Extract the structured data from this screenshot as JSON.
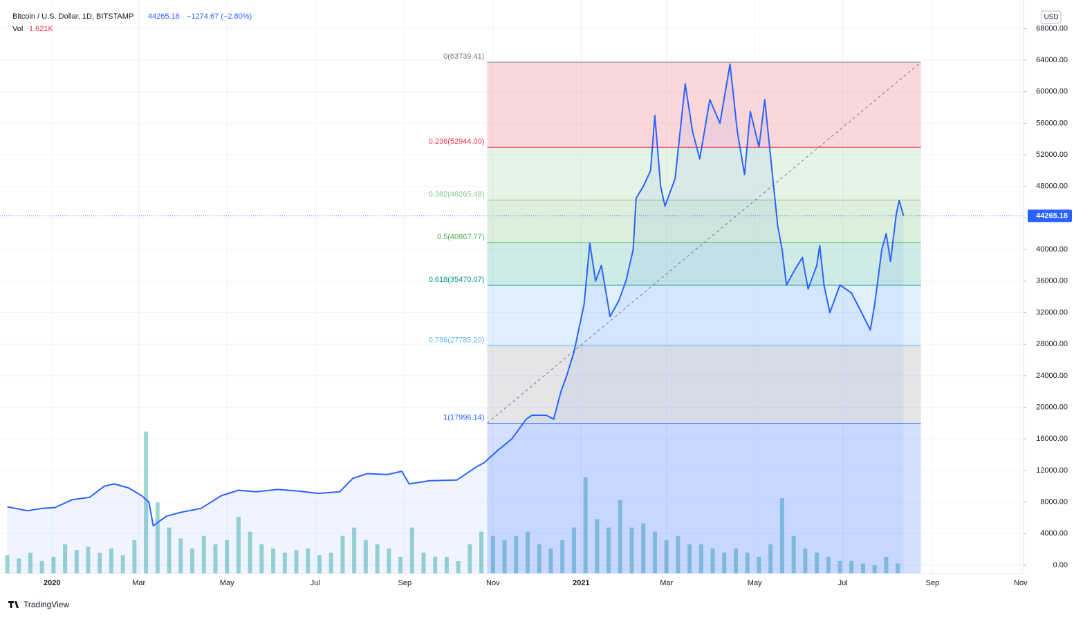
{
  "chart_data": {
    "type": "line",
    "title": "Bitcoin / U.S. Dollar, 1D, BITSTAMP",
    "last_price": 44265.18,
    "change": "−1274.67 (−2.80%)",
    "volume_title": "Vol",
    "volume_last": "1.621K",
    "currency": "USD",
    "brand": "TradingView",
    "xlim": [
      -36,
      672
    ],
    "ylim": [
      -1050,
      71620
    ],
    "xticks": [
      {
        "value": 0,
        "label": "2020"
      },
      {
        "value": 60,
        "label": "Mar"
      },
      {
        "value": 121,
        "label": "May"
      },
      {
        "value": 182,
        "label": "Jul"
      },
      {
        "value": 244,
        "label": "Sep"
      },
      {
        "value": 305,
        "label": "Nov"
      },
      {
        "value": 366,
        "label": "2021"
      },
      {
        "value": 425,
        "label": "Mar"
      },
      {
        "value": 486,
        "label": "May"
      },
      {
        "value": 547,
        "label": "Jul"
      },
      {
        "value": 609,
        "label": "Sep"
      },
      {
        "value": 670,
        "label": "Nov"
      }
    ],
    "yticks": [
      {
        "value": 0,
        "label": "0.00"
      },
      {
        "value": 4000,
        "label": "4000.00"
      },
      {
        "value": 8000,
        "label": "8000.00"
      },
      {
        "value": 12000,
        "label": "12000.00"
      },
      {
        "value": 16000,
        "label": "16000.00"
      },
      {
        "value": 20000,
        "label": "20000.00"
      },
      {
        "value": 24000,
        "label": "24000.00"
      },
      {
        "value": 28000,
        "label": "28000.00"
      },
      {
        "value": 32000,
        "label": "32000.00"
      },
      {
        "value": 36000,
        "label": "36000.00"
      },
      {
        "value": 40000,
        "label": "40000.00"
      },
      {
        "value": 44000,
        "label": "44000.00"
      },
      {
        "value": 48000,
        "label": "48000.00"
      },
      {
        "value": 52000,
        "label": "52000.00"
      },
      {
        "value": 56000,
        "label": "56000.00"
      },
      {
        "value": 60000,
        "label": "60000.00"
      },
      {
        "value": 64000,
        "label": "64000.00"
      },
      {
        "value": 68000,
        "label": "68000.00"
      }
    ],
    "grid": true,
    "series": [
      {
        "name": "Bitcoin / U.S. Dollar",
        "color": "#2962ff",
        "x": [
          -31,
          -17,
          -7,
          2,
          14,
          26,
          36,
          43,
          53,
          62,
          67,
          70,
          79,
          89,
          103,
          117,
          129,
          141,
          156,
          170,
          184,
          199,
          208,
          218,
          232,
          242,
          247,
          261,
          280,
          294,
          299,
          308,
          318,
          328,
          332,
          342,
          347,
          352,
          356,
          361,
          368,
          372,
          376,
          380,
          386,
          392,
          397,
          402,
          404,
          409,
          414,
          417,
          421,
          424,
          431,
          438,
          443,
          448,
          455,
          462,
          469,
          474,
          479,
          483,
          489,
          493,
          498,
          502,
          505,
          508,
          514,
          519,
          523,
          529,
          531,
          534,
          538,
          545,
          553,
          560,
          566,
          569,
          574,
          577,
          580,
          584,
          586,
          589
        ],
        "values": [
          7400,
          6900,
          7200,
          7300,
          8300,
          8600,
          10000,
          10300,
          9800,
          8800,
          8000,
          5000,
          6200,
          6700,
          7200,
          8800,
          9500,
          9300,
          9600,
          9400,
          9100,
          9300,
          11000,
          11600,
          11500,
          11900,
          10300,
          10700,
          10800,
          12500,
          13000,
          14500,
          16000,
          18500,
          19000,
          19000,
          18500,
          22000,
          24000,
          27000,
          33000,
          40800,
          36000,
          38000,
          31500,
          33500,
          36000,
          40000,
          46500,
          48000,
          50000,
          57000,
          48000,
          45500,
          49000,
          61000,
          55000,
          51500,
          59000,
          56000,
          63500,
          55000,
          49500,
          57500,
          53000,
          59000,
          50000,
          43000,
          40000,
          35500,
          37500,
          39000,
          35000,
          38000,
          40500,
          35500,
          32000,
          35500,
          34500,
          32000,
          29800,
          33000,
          40000,
          42000,
          38500,
          44500,
          46200,
          44265.18
        ]
      }
    ],
    "volume": {
      "color": "#26a69a",
      "ylim": [
        0,
        24
      ],
      "x": [
        -31,
        -23,
        -15,
        -7,
        1,
        9,
        17,
        25,
        33,
        41,
        49,
        57,
        65,
        73,
        81,
        89,
        97,
        105,
        113,
        121,
        129,
        137,
        145,
        153,
        161,
        169,
        177,
        185,
        193,
        201,
        209,
        217,
        225,
        233,
        241,
        249,
        257,
        265,
        273,
        281,
        289,
        297,
        305,
        313,
        321,
        329,
        337,
        345,
        353,
        361,
        369,
        377,
        385,
        393,
        401,
        409,
        417,
        425,
        433,
        441,
        449,
        457,
        465,
        473,
        481,
        489,
        497,
        505,
        513,
        521,
        529,
        537,
        545,
        553,
        561,
        569,
        577,
        585
      ],
      "values": [
        2.2,
        1.8,
        2.5,
        1.5,
        2.0,
        3.5,
        2.8,
        3.2,
        2.5,
        3.0,
        2.2,
        4.0,
        17.0,
        8.5,
        5.5,
        4.2,
        3.0,
        4.5,
        3.5,
        4.0,
        6.8,
        5.0,
        3.5,
        3.0,
        2.5,
        2.8,
        3.0,
        2.2,
        2.5,
        4.5,
        5.5,
        4.0,
        3.5,
        3.0,
        2.0,
        5.5,
        2.5,
        2.0,
        2.0,
        1.5,
        3.5,
        5.0,
        4.5,
        4.0,
        4.5,
        5.0,
        3.5,
        3.0,
        4.0,
        5.5,
        11.5,
        6.5,
        5.5,
        8.8,
        5.5,
        6.0,
        5.0,
        4.0,
        4.5,
        3.5,
        3.5,
        3.0,
        2.5,
        3.0,
        2.5,
        2.0,
        3.5,
        9.0,
        4.5,
        3.0,
        2.5,
        2.0,
        1.5,
        1.5,
        1.2,
        1.0,
        2.0,
        1.2
      ]
    },
    "fib": {
      "x": [
        301,
        601
      ],
      "trend_color": "#787b86",
      "levels": [
        {
          "value": 63739.41,
          "label": "0(63739.41)",
          "color": "#787b86",
          "zone_color": "rgba(242,54,69,0.2)"
        },
        {
          "value": 52944.0,
          "label": "0.236(52944.00)",
          "color": "#f23645",
          "zone_color": "rgba(129,199,132,0.2)"
        },
        {
          "value": 46265.48,
          "label": "0.382(46265.48)",
          "color": "#81c784",
          "zone_color": "rgba(76,175,80,0.2)"
        },
        {
          "value": 40867.77,
          "label": "0.5(40867.77)",
          "color": "#4caf50",
          "zone_color": "rgba(8,153,129,0.2)"
        },
        {
          "value": 35470.07,
          "label": "0.618(35470.07)",
          "color": "#089981",
          "zone_color": "rgba(100,181,246,0.2)"
        },
        {
          "value": 27785.2,
          "label": "0.786(27785.20)",
          "color": "#64b5f6",
          "zone_color": "rgba(120,123,134,0.2)"
        },
        {
          "value": 17996.14,
          "label": "1(17996.14)",
          "color": "#2962ff",
          "zone_color": "rgba(41,98,255,0.2)"
        }
      ]
    }
  }
}
